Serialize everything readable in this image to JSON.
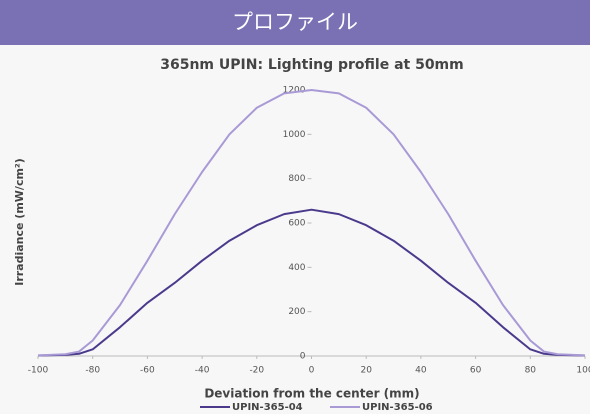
{
  "header": {
    "title": "プロファイル"
  },
  "chart_data": {
    "type": "line",
    "title": "365nm UPIN: Lighting profile at 50mm",
    "x_label": "Deviation from the center (mm)",
    "y_label": "Irradiance (mW/cm²)",
    "x": [
      -100,
      -90,
      -85,
      -80,
      -70,
      -60,
      -50,
      -40,
      -30,
      -20,
      -10,
      0,
      10,
      20,
      30,
      40,
      50,
      60,
      70,
      80,
      85,
      90,
      100
    ],
    "series": [
      {
        "name": "UPIN-365-04",
        "color": "#4b3a8c",
        "values": [
          2,
          5,
          10,
          30,
          130,
          240,
          330,
          430,
          520,
          590,
          640,
          660,
          640,
          590,
          520,
          430,
          330,
          240,
          130,
          30,
          10,
          5,
          2
        ]
      },
      {
        "name": "UPIN-365-06",
        "color": "#a99ad6",
        "values": [
          3,
          8,
          20,
          70,
          230,
          430,
          640,
          830,
          1000,
          1120,
          1185,
          1200,
          1185,
          1120,
          1000,
          830,
          640,
          430,
          230,
          70,
          20,
          8,
          3
        ]
      }
    ],
    "xlim": [
      -100,
      100
    ],
    "xticks": [
      -100,
      -80,
      -60,
      -40,
      -20,
      0,
      20,
      40,
      60,
      80,
      100
    ],
    "ylim": [
      0,
      1200
    ],
    "yticks": [
      0,
      200,
      400,
      600,
      800,
      1000,
      1200
    ]
  }
}
